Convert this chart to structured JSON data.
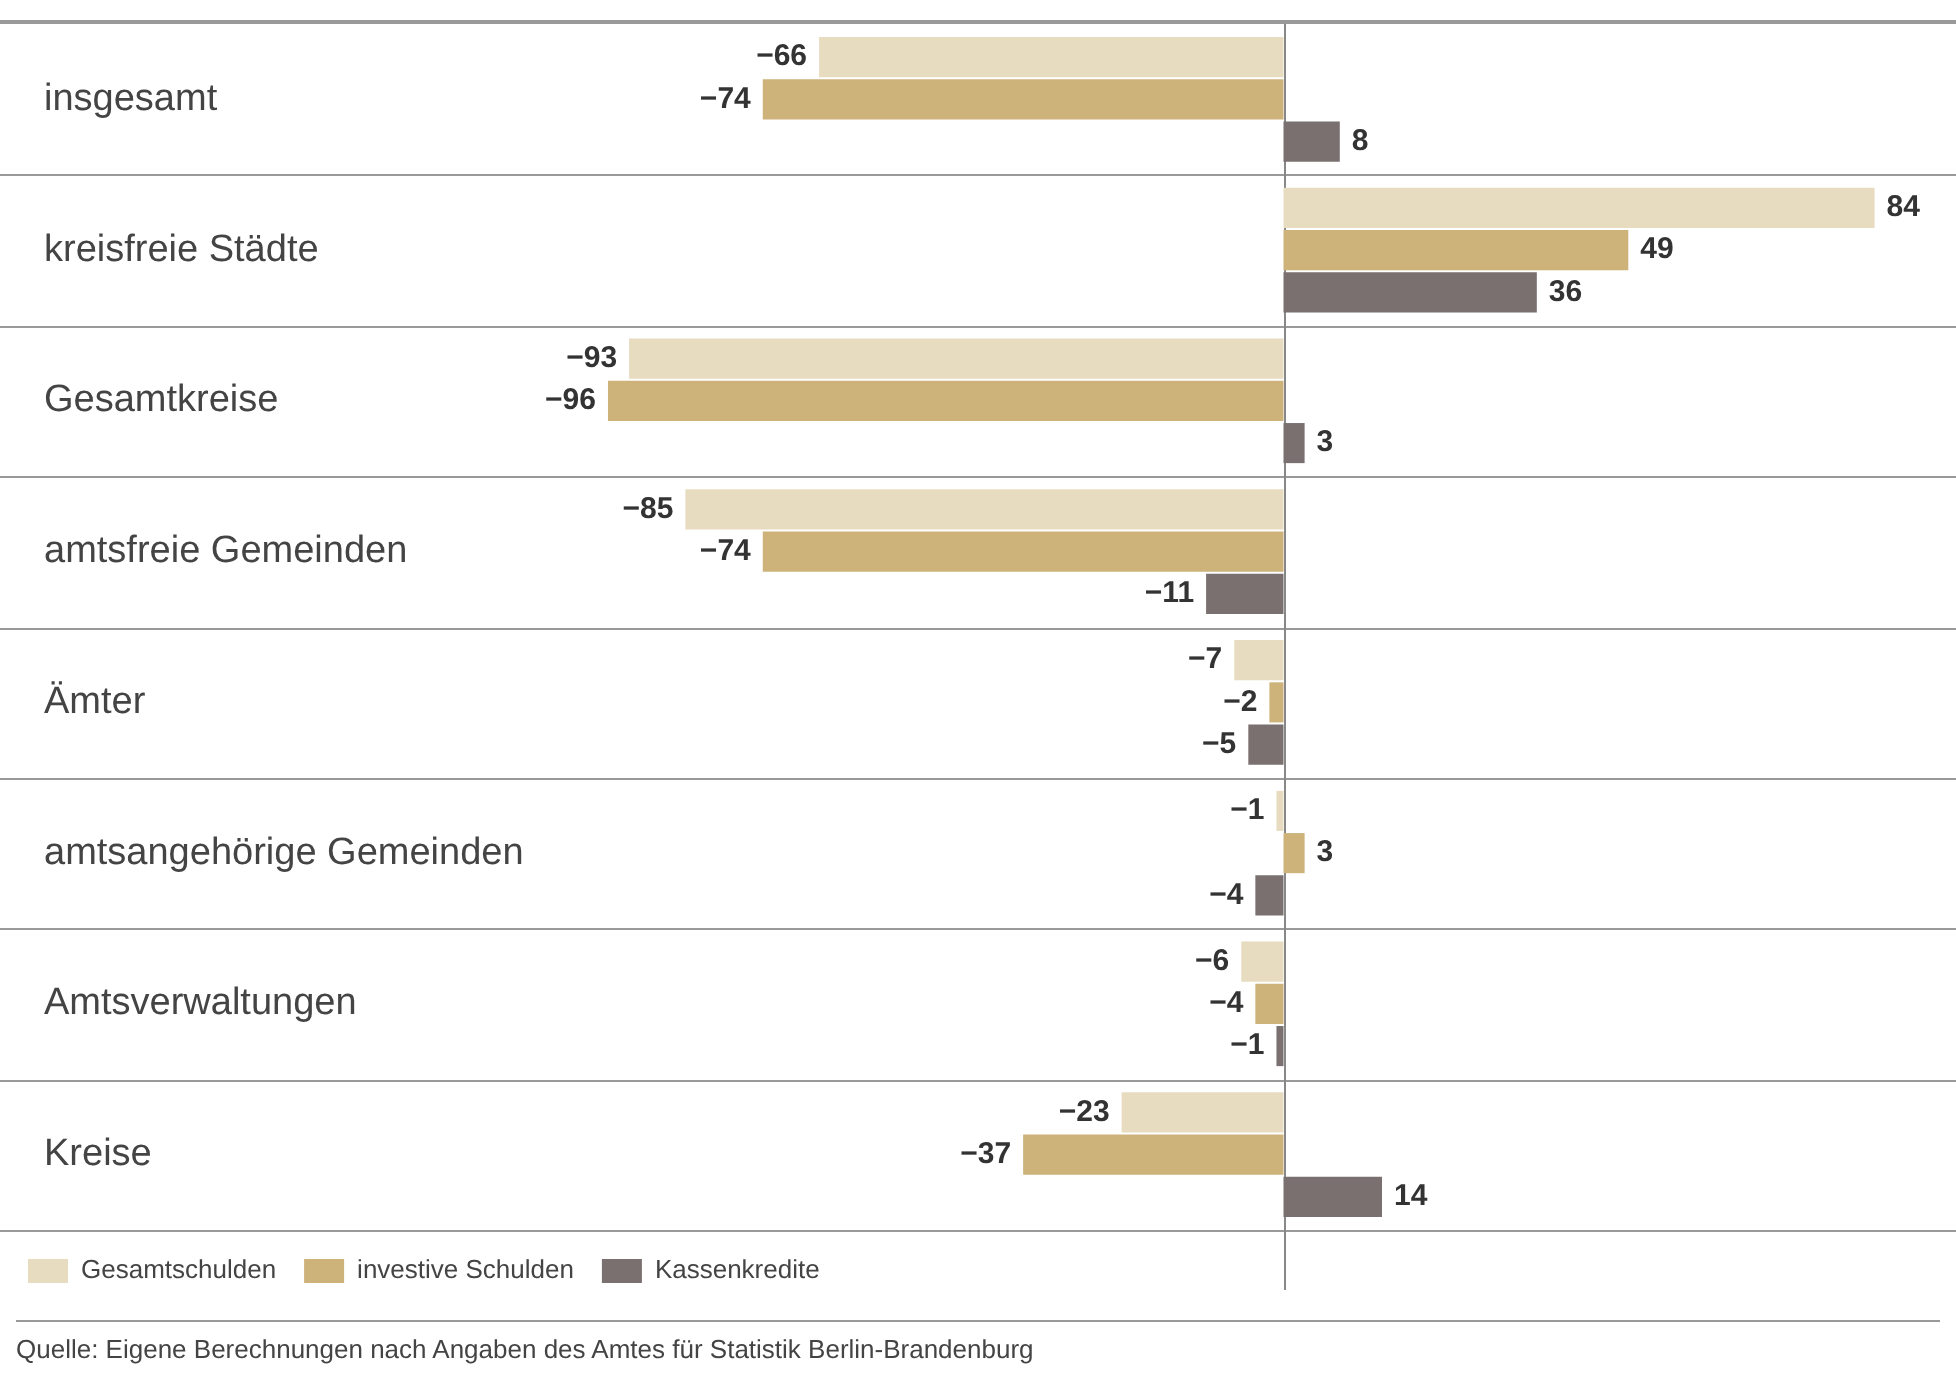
{
  "chart_data": {
    "type": "bar",
    "orientation": "horizontal",
    "categories": [
      "insgesamt",
      "kreisfreie Städte",
      "Gesamtkreise",
      "amtsfreie Gemeinden",
      "Ämter",
      "amtsangehörige Gemeinden",
      "Amtsverwaltungen",
      "Kreise"
    ],
    "series": [
      {
        "name": "Gesamtschulden",
        "color": "#e8dcc0",
        "values": [
          -66,
          84,
          -93,
          -85,
          -7,
          -1,
          -6,
          -23
        ]
      },
      {
        "name": "investive Schulden",
        "color": "#cdb27a",
        "values": [
          -74,
          49,
          -96,
          -74,
          -2,
          3,
          -4,
          -37
        ]
      },
      {
        "name": "Kassenkredite",
        "color": "#7a7070",
        "values": [
          8,
          36,
          3,
          -11,
          -5,
          -4,
          -1,
          14
        ]
      }
    ],
    "data_labels": true,
    "grid": "y",
    "legend": "bottom left",
    "annotations": [
      "Quelle:  Eigene Berechnungen nach Angaben des Amtes für Statistik Berlin-Brandenburg"
    ]
  }
}
